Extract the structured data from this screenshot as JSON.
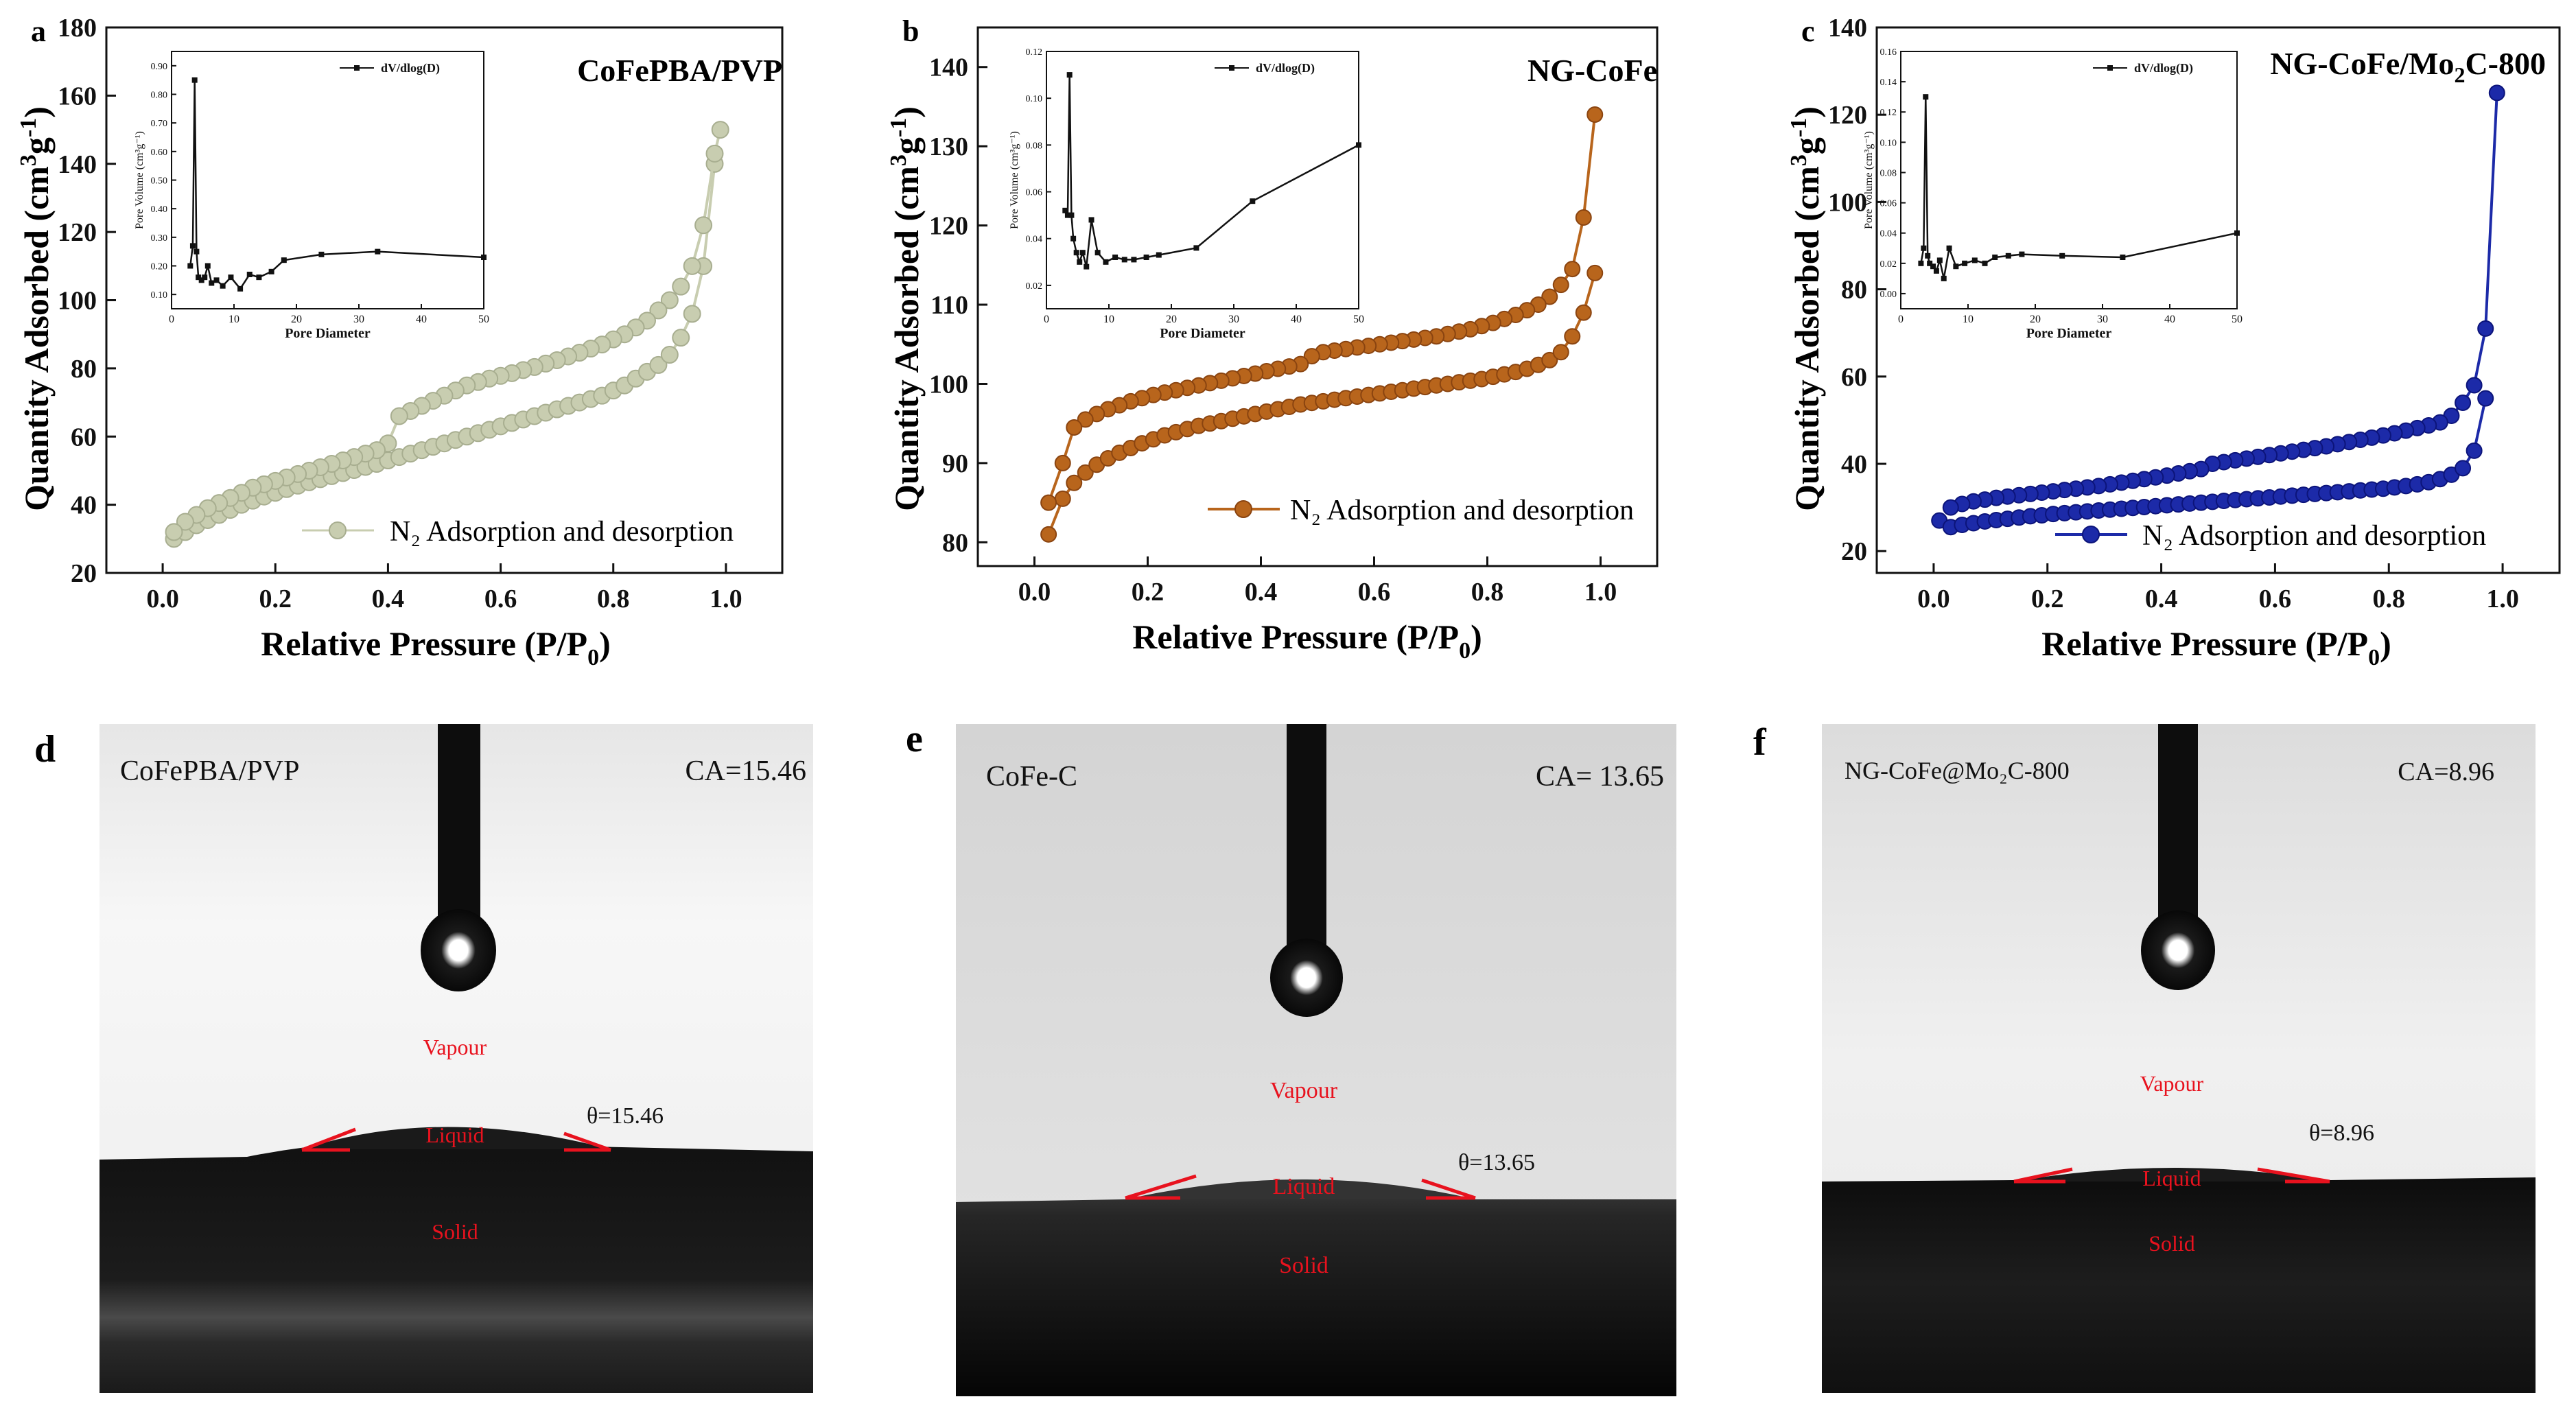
{
  "figure": {
    "panels": {
      "a": {
        "letter": "a",
        "sample": "CoFePBA/PVP",
        "color": "#c8cdb0",
        "legend_text": "N₂ Adsorption and desorption"
      },
      "b": {
        "letter": "b",
        "sample": "NG-CoFe",
        "color": "#b8651c",
        "legend_text": "N₂ Adsorption and desorption"
      },
      "c": {
        "letter": "c",
        "sample_main": "NG-CoFe/Mo",
        "sample_sub": "2",
        "sample_tail": "C-800",
        "color": "#1c2aa8",
        "legend_text": "N₂ Adsorption and desorption"
      },
      "d": {
        "letter": "d",
        "sample": "CoFePBA/PVP",
        "ca": "CA=15.46",
        "theta": "θ=15.46",
        "vapour": "Vapour",
        "liquid": "Liquid",
        "solid": "Solid"
      },
      "e": {
        "letter": "e",
        "sample": "CoFe-C",
        "ca": "CA= 13.65",
        "theta": "θ=13.65",
        "vapour": "Vapour",
        "liquid": "Liquid",
        "solid": "Solid"
      },
      "f": {
        "letter": "f",
        "sample": "NG-CoFe@Mo₂C-800",
        "ca": "CA=8.96",
        "theta": "θ=8.96",
        "vapour": "Vapour",
        "liquid": "Liquid",
        "solid": "Solid"
      }
    },
    "axis_text": {
      "xlabel_main": "Relative Pressure (P/P",
      "xlabel_sub": "0",
      "xlabel_close": ")",
      "ylabel_main": "Quantity Adsorbed (cm",
      "ylabel_sup3": "3",
      "ylabel_g": "g",
      "ylabel_supm1": "-1",
      "ylabel_close": ")",
      "inset_xlabel": "Pore Diameter",
      "inset_ylabel": "Pore Volume (cm³g⁻¹)",
      "inset_legend": "dV/dlog(D)"
    }
  },
  "chart_data": [
    {
      "id": "a",
      "type": "line",
      "title": "CoFePBA/PVP",
      "xlabel": "Relative Pressure (P/P0)",
      "ylabel": "Quantity Adsorbed (cm3g-1)",
      "xlim": [
        -0.1,
        1.1
      ],
      "ylim": [
        20,
        180
      ],
      "xticks": [
        0.0,
        0.2,
        0.4,
        0.6,
        0.8,
        1.0
      ],
      "yticks": [
        20,
        40,
        60,
        80,
        100,
        120,
        140,
        160,
        180
      ],
      "series": [
        {
          "name": "Adsorption",
          "x": [
            0.02,
            0.04,
            0.06,
            0.08,
            0.1,
            0.12,
            0.14,
            0.16,
            0.18,
            0.2,
            0.22,
            0.24,
            0.26,
            0.28,
            0.3,
            0.32,
            0.34,
            0.36,
            0.38,
            0.4,
            0.42,
            0.44,
            0.46,
            0.48,
            0.5,
            0.52,
            0.54,
            0.56,
            0.58,
            0.6,
            0.62,
            0.64,
            0.66,
            0.68,
            0.7,
            0.72,
            0.74,
            0.76,
            0.78,
            0.8,
            0.82,
            0.84,
            0.86,
            0.88,
            0.9,
            0.92,
            0.94,
            0.96,
            0.98
          ],
          "y": [
            30,
            32,
            34,
            35.5,
            37,
            38.5,
            40,
            41.2,
            42.4,
            43.5,
            44.6,
            45.6,
            46.6,
            47.5,
            48.4,
            49.3,
            50.2,
            51.1,
            52,
            53,
            54,
            55,
            56,
            57,
            58,
            59,
            60,
            61,
            62,
            63,
            64,
            65,
            66,
            67,
            68,
            69,
            70,
            71,
            72,
            73.5,
            75,
            77,
            79,
            81,
            84,
            89,
            96,
            110,
            140
          ]
        },
        {
          "name": "Desorption",
          "x": [
            0.99,
            0.98,
            0.96,
            0.94,
            0.92,
            0.9,
            0.88,
            0.86,
            0.84,
            0.82,
            0.8,
            0.78,
            0.76,
            0.74,
            0.72,
            0.7,
            0.68,
            0.66,
            0.64,
            0.62,
            0.6,
            0.58,
            0.56,
            0.54,
            0.52,
            0.5,
            0.48,
            0.46,
            0.44,
            0.42,
            0.4,
            0.38,
            0.36,
            0.34,
            0.32,
            0.3,
            0.28,
            0.26,
            0.24,
            0.22,
            0.2,
            0.18,
            0.16,
            0.14,
            0.12,
            0.1,
            0.08,
            0.06,
            0.04,
            0.02
          ],
          "y": [
            150,
            143,
            122,
            110,
            104,
            100,
            97,
            94,
            92,
            90,
            88.5,
            87,
            85.8,
            84.6,
            83.5,
            82.4,
            81.4,
            80.4,
            79.5,
            78.6,
            77.8,
            77,
            76,
            75,
            73.5,
            72,
            70.5,
            69,
            67.5,
            66,
            58,
            56,
            55,
            54,
            53,
            52,
            51,
            50,
            49,
            48,
            47,
            46,
            45,
            43.5,
            42,
            40.5,
            39,
            37,
            35,
            32
          ]
        }
      ],
      "legend": [
        "N2 Adsorption and desorption"
      ],
      "inset": {
        "type": "line",
        "xlabel": "Pore Diameter",
        "ylabel": "Pore Volume (cm3g-1)",
        "xlim": [
          0,
          50
        ],
        "ylim": [
          0.05,
          0.95
        ],
        "xticks": [
          0,
          10,
          20,
          30,
          40,
          50
        ],
        "yticks": [
          0.1,
          0.2,
          0.3,
          0.4,
          0.5,
          0.6,
          0.7,
          0.8,
          0.9
        ],
        "legend": "dV/dlog(D)",
        "x": [
          3.0,
          3.4,
          3.7,
          4.0,
          4.3,
          4.8,
          5.3,
          5.8,
          6.4,
          7.2,
          8.2,
          9.5,
          11,
          12.5,
          14,
          16,
          18,
          24,
          33,
          50
        ],
        "y": [
          0.2,
          0.27,
          0.85,
          0.25,
          0.16,
          0.15,
          0.16,
          0.2,
          0.14,
          0.15,
          0.13,
          0.16,
          0.12,
          0.17,
          0.16,
          0.18,
          0.22,
          0.24,
          0.25,
          0.23
        ]
      }
    },
    {
      "id": "b",
      "type": "line",
      "title": "NG-CoFe",
      "xlabel": "Relative Pressure (P/P0)",
      "ylabel": "Quantity Adsorbed (cm3g-1)",
      "xlim": [
        -0.1,
        1.1
      ],
      "ylim": [
        77,
        145
      ],
      "xticks": [
        0.0,
        0.2,
        0.4,
        0.6,
        0.8,
        1.0
      ],
      "yticks": [
        80,
        90,
        100,
        110,
        120,
        130,
        140
      ],
      "series": [
        {
          "name": "Adsorption",
          "x": [
            0.025,
            0.05,
            0.07,
            0.09,
            0.11,
            0.13,
            0.15,
            0.17,
            0.19,
            0.21,
            0.23,
            0.25,
            0.27,
            0.29,
            0.31,
            0.33,
            0.35,
            0.37,
            0.39,
            0.41,
            0.43,
            0.45,
            0.47,
            0.49,
            0.51,
            0.53,
            0.55,
            0.57,
            0.59,
            0.61,
            0.63,
            0.65,
            0.67,
            0.69,
            0.71,
            0.73,
            0.75,
            0.77,
            0.79,
            0.81,
            0.83,
            0.85,
            0.87,
            0.89,
            0.91,
            0.93,
            0.95,
            0.97,
            0.99
          ],
          "y": [
            81,
            85.5,
            87.5,
            88.8,
            89.8,
            90.6,
            91.3,
            91.9,
            92.5,
            93,
            93.5,
            93.9,
            94.3,
            94.7,
            95,
            95.3,
            95.6,
            95.9,
            96.2,
            96.5,
            96.8,
            97.1,
            97.4,
            97.6,
            97.8,
            98,
            98.2,
            98.4,
            98.6,
            98.8,
            99,
            99.2,
            99.4,
            99.6,
            99.8,
            100,
            100.2,
            100.4,
            100.6,
            100.9,
            101.2,
            101.5,
            101.9,
            102.4,
            103,
            104,
            106,
            109,
            114
          ]
        },
        {
          "name": "Desorption",
          "x": [
            0.99,
            0.97,
            0.95,
            0.93,
            0.91,
            0.89,
            0.87,
            0.85,
            0.83,
            0.81,
            0.79,
            0.77,
            0.75,
            0.73,
            0.71,
            0.69,
            0.67,
            0.65,
            0.63,
            0.61,
            0.59,
            0.57,
            0.55,
            0.53,
            0.51,
            0.49,
            0.47,
            0.45,
            0.43,
            0.41,
            0.39,
            0.37,
            0.35,
            0.33,
            0.31,
            0.29,
            0.27,
            0.25,
            0.23,
            0.21,
            0.19,
            0.17,
            0.15,
            0.13,
            0.11,
            0.09,
            0.07,
            0.05,
            0.025
          ],
          "y": [
            134,
            121,
            114.5,
            112.5,
            111,
            110,
            109.3,
            108.7,
            108.2,
            107.7,
            107.3,
            106.9,
            106.6,
            106.3,
            106,
            105.8,
            105.6,
            105.4,
            105.2,
            105,
            104.8,
            104.6,
            104.4,
            104.2,
            104,
            103.5,
            102.5,
            102.2,
            101.9,
            101.6,
            101.3,
            101,
            100.7,
            100.4,
            100.1,
            99.8,
            99.5,
            99.2,
            98.9,
            98.6,
            98.2,
            97.8,
            97.3,
            96.8,
            96.2,
            95.5,
            94.5,
            90,
            85
          ]
        }
      ],
      "legend": [
        "N2 Adsorption and desorption"
      ],
      "inset": {
        "type": "line",
        "xlabel": "Pore Diameter",
        "ylabel": "Pore Volume (cm3g-1)",
        "xlim": [
          0,
          50
        ],
        "ylim": [
          0.01,
          0.12
        ],
        "xticks": [
          0,
          10,
          20,
          30,
          40,
          50
        ],
        "yticks": [
          0.02,
          0.04,
          0.06,
          0.08,
          0.1,
          0.12
        ],
        "legend": "dV/dlog(D)",
        "x": [
          3.0,
          3.4,
          3.7,
          4.0,
          4.3,
          4.8,
          5.3,
          5.8,
          6.4,
          7.2,
          8.2,
          9.5,
          11,
          12.5,
          14,
          16,
          18,
          24,
          33,
          50
        ],
        "y": [
          0.052,
          0.05,
          0.11,
          0.05,
          0.04,
          0.034,
          0.03,
          0.034,
          0.028,
          0.048,
          0.034,
          0.03,
          0.032,
          0.031,
          0.031,
          0.032,
          0.033,
          0.036,
          0.056,
          0.08
        ]
      }
    },
    {
      "id": "c",
      "type": "line",
      "title": "NG-CoFe/Mo2C-800",
      "xlabel": "Relative Pressure (P/P0)",
      "ylabel": "Quantity Adsorbed (cm3g-1)",
      "xlim": [
        -0.1,
        1.1
      ],
      "ylim": [
        15,
        140
      ],
      "xticks": [
        0.0,
        0.2,
        0.4,
        0.6,
        0.8,
        1.0
      ],
      "yticks": [
        20,
        40,
        60,
        80,
        100,
        120,
        140
      ],
      "series": [
        {
          "name": "Adsorption",
          "x": [
            0.01,
            0.03,
            0.05,
            0.07,
            0.09,
            0.11,
            0.13,
            0.15,
            0.17,
            0.19,
            0.21,
            0.23,
            0.25,
            0.27,
            0.29,
            0.31,
            0.33,
            0.35,
            0.37,
            0.39,
            0.41,
            0.43,
            0.45,
            0.47,
            0.49,
            0.51,
            0.53,
            0.55,
            0.57,
            0.59,
            0.61,
            0.63,
            0.65,
            0.67,
            0.69,
            0.71,
            0.73,
            0.75,
            0.77,
            0.79,
            0.81,
            0.83,
            0.85,
            0.87,
            0.89,
            0.91,
            0.93,
            0.95,
            0.97
          ],
          "y": [
            27,
            25.5,
            26,
            26.4,
            26.8,
            27.1,
            27.4,
            27.7,
            28,
            28.2,
            28.5,
            28.7,
            28.9,
            29.1,
            29.3,
            29.5,
            29.7,
            29.9,
            30.1,
            30.3,
            30.5,
            30.7,
            30.9,
            31.1,
            31.3,
            31.5,
            31.7,
            31.9,
            32.1,
            32.3,
            32.5,
            32.7,
            32.9,
            33.1,
            33.3,
            33.5,
            33.7,
            33.9,
            34.1,
            34.3,
            34.6,
            34.9,
            35.3,
            35.8,
            36.5,
            37.5,
            39,
            43,
            55
          ]
        },
        {
          "name": "Desorption",
          "x": [
            0.99,
            0.97,
            0.95,
            0.93,
            0.91,
            0.89,
            0.87,
            0.85,
            0.83,
            0.81,
            0.79,
            0.77,
            0.75,
            0.73,
            0.71,
            0.69,
            0.67,
            0.65,
            0.63,
            0.61,
            0.59,
            0.57,
            0.55,
            0.53,
            0.51,
            0.49,
            0.47,
            0.45,
            0.43,
            0.41,
            0.39,
            0.37,
            0.35,
            0.33,
            0.31,
            0.29,
            0.27,
            0.25,
            0.23,
            0.21,
            0.19,
            0.17,
            0.15,
            0.13,
            0.11,
            0.09,
            0.07,
            0.05,
            0.03
          ],
          "y": [
            125,
            71,
            58,
            54,
            51,
            49.5,
            48.8,
            48.2,
            47.6,
            47,
            46.5,
            46,
            45.5,
            45,
            44.5,
            44,
            43.6,
            43.2,
            42.8,
            42.4,
            42,
            41.6,
            41.2,
            40.8,
            40.4,
            40,
            38.8,
            38.3,
            37.8,
            37.3,
            36.9,
            36.5,
            36.1,
            35.7,
            35.3,
            34.9,
            34.6,
            34.3,
            34,
            33.7,
            33.4,
            33.1,
            32.8,
            32.5,
            32.2,
            31.8,
            31.4,
            30.8,
            30
          ]
        }
      ],
      "legend": [
        "N2 Adsorption and desorption"
      ],
      "inset": {
        "type": "line",
        "xlabel": "Pore Diameter",
        "ylabel": "Pore Volume (cm3g-1)",
        "xlim": [
          0,
          50
        ],
        "ylim": [
          -0.01,
          0.16
        ],
        "xticks": [
          0,
          10,
          20,
          30,
          40,
          50
        ],
        "yticks": [
          0.0,
          0.02,
          0.04,
          0.06,
          0.08,
          0.1,
          0.12,
          0.14,
          0.16
        ],
        "legend": "dV/dlog(D)",
        "x": [
          3.0,
          3.4,
          3.7,
          4.0,
          4.3,
          4.8,
          5.3,
          5.8,
          6.4,
          7.2,
          8.2,
          9.5,
          11,
          12.5,
          14,
          16,
          18,
          24,
          33,
          50
        ],
        "y": [
          0.02,
          0.03,
          0.13,
          0.025,
          0.02,
          0.018,
          0.015,
          0.022,
          0.01,
          0.03,
          0.018,
          0.02,
          0.022,
          0.02,
          0.024,
          0.025,
          0.026,
          0.025,
          0.024,
          0.04
        ]
      }
    }
  ]
}
